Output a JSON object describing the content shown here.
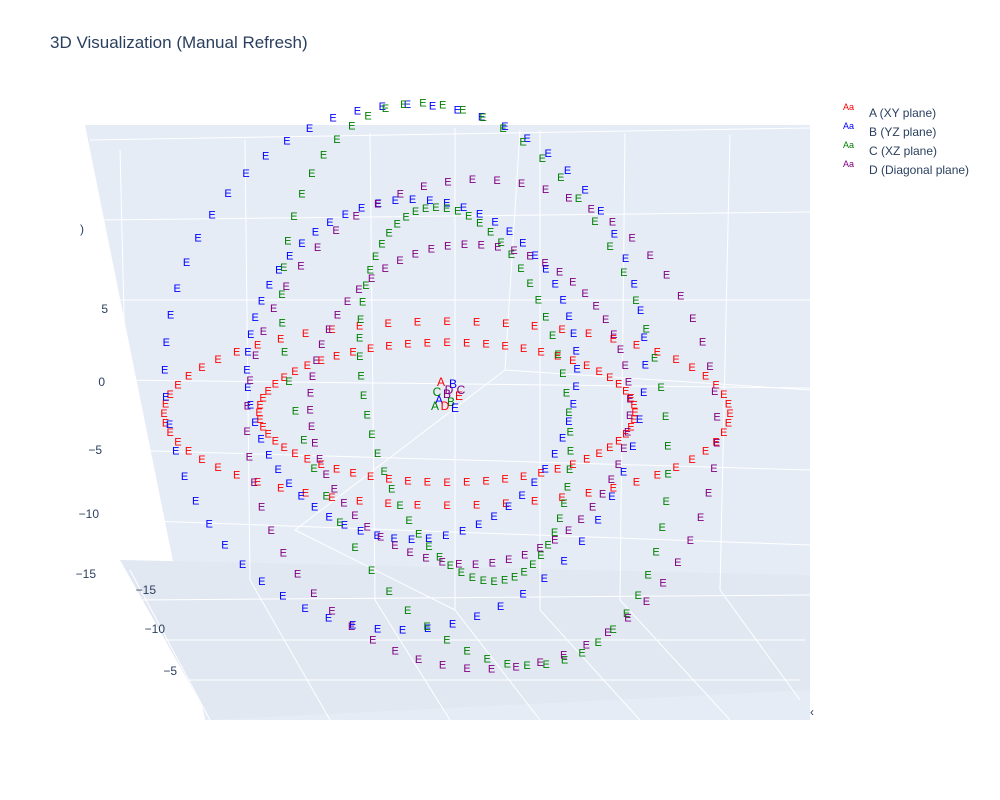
{
  "chart_data": {
    "type": "scatter3d",
    "title": "3D Visualization (Manual Refresh)",
    "mode": "text",
    "marker_text": "E",
    "legend_swatch_text": "Aa",
    "legend_placement": "top-right",
    "grid": true,
    "axes": {
      "z_ticks": [
        "5",
        "0",
        "−5",
        "−10",
        "−15"
      ],
      "z_tick_clipped": ")",
      "y_ticks": [
        "−15",
        "−10",
        "−5"
      ],
      "x_tick_clipped": "‹"
    },
    "series": [
      {
        "name": "A (XY plane)",
        "color": "#ff0000",
        "plane": "xy",
        "radii": [
          15,
          10
        ],
        "points_per_ring": 60
      },
      {
        "name": "B (YZ plane)",
        "color": "#0000ff",
        "plane": "yz",
        "radii": [
          15,
          10
        ],
        "points_per_ring": 60
      },
      {
        "name": "C (XZ plane)",
        "color": "#008000",
        "plane": "xz",
        "radii": [
          15,
          10
        ],
        "points_per_ring": 60
      },
      {
        "name": "D (Diagonal plane)",
        "color": "#800080",
        "plane": "diagonal",
        "radii": [
          15,
          10
        ],
        "points_per_ring": 60
      }
    ],
    "center_labels": [
      "A",
      "B",
      "C",
      "D",
      "E"
    ]
  }
}
